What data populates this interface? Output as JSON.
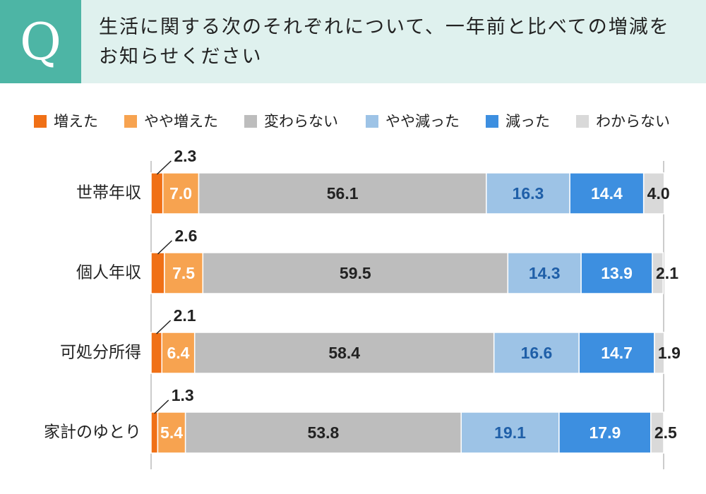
{
  "chart_data": {
    "type": "stacked-bar-horizontal",
    "badge": "Q",
    "title": "生活に関する次のそれぞれについて、一年前と比べての増減をお知らせください",
    "categories": [
      "世帯年収",
      "個人年収",
      "可処分所得",
      "家計のゆとり"
    ],
    "xlim": [
      0,
      100
    ],
    "series": [
      {
        "name": "増えた",
        "color": "#f07016",
        "values": [
          2.3,
          2.6,
          2.1,
          1.3
        ]
      },
      {
        "name": "やや増えた",
        "color": "#f7a350",
        "values": [
          7.0,
          7.5,
          6.4,
          5.4
        ],
        "value_labels": [
          "7.0",
          "7.5",
          "6.4",
          "5.4"
        ]
      },
      {
        "name": "変わらない",
        "color": "#bdbdbd",
        "values": [
          56.1,
          59.5,
          58.4,
          53.8
        ]
      },
      {
        "name": "やや減った",
        "color": "#9dc3e6",
        "values": [
          16.3,
          14.3,
          16.6,
          19.1
        ]
      },
      {
        "name": "減った",
        "color": "#3d8fe0",
        "values": [
          14.4,
          13.9,
          14.7,
          17.9
        ]
      },
      {
        "name": "わからない",
        "color": "#d9d9d9",
        "values": [
          4.0,
          2.1,
          1.9,
          2.5
        ],
        "value_labels": [
          "4.0",
          "2.1",
          "1.9",
          "2.5"
        ]
      }
    ]
  }
}
